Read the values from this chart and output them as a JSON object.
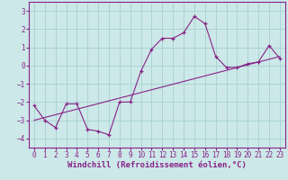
{
  "xlabel": "Windchill (Refroidissement éolien,°C)",
  "xlim": [
    -0.5,
    23.5
  ],
  "ylim": [
    -4.5,
    3.5
  ],
  "yticks": [
    -4,
    -3,
    -2,
    -1,
    0,
    1,
    2,
    3
  ],
  "xticks": [
    0,
    1,
    2,
    3,
    4,
    5,
    6,
    7,
    8,
    9,
    10,
    11,
    12,
    13,
    14,
    15,
    16,
    17,
    18,
    19,
    20,
    21,
    22,
    23
  ],
  "background_color": "#cce8e8",
  "grid_color": "#aad4d4",
  "line_color": "#882288",
  "line1_x": [
    0,
    1,
    2,
    3,
    4,
    5,
    6,
    7,
    8,
    9,
    10,
    11,
    12,
    13,
    14,
    15,
    16,
    17,
    18,
    19,
    20,
    21,
    22,
    23
  ],
  "line1_y": [
    -2.2,
    -3.0,
    -3.4,
    -2.1,
    -2.1,
    -3.5,
    -3.6,
    -3.8,
    -2.0,
    -2.0,
    -0.3,
    0.9,
    1.5,
    1.5,
    1.8,
    2.7,
    2.3,
    0.5,
    -0.1,
    -0.1,
    0.1,
    0.2,
    1.1,
    0.4
  ],
  "line2_x": [
    0,
    23
  ],
  "line2_y": [
    -3.0,
    0.5
  ],
  "tick_fontsize": 5.5,
  "xlabel_fontsize": 6.5
}
